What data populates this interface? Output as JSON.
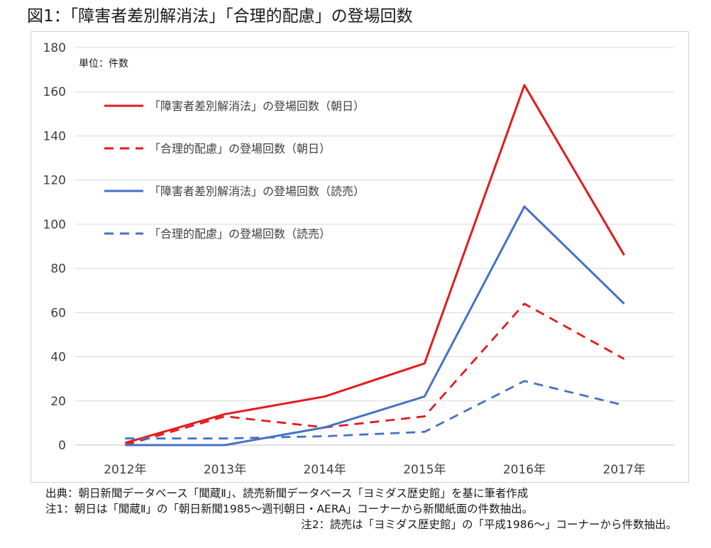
{
  "title": "図1：「障害者差別解消法」「合理的配慮」の登場回数",
  "unit_label": "単位：件数",
  "notes": [
    "出典：朝日新聞データベース「聞蔵Ⅱ」、読売新聞データベース「ヨミダス歴史館」を基に筆者作成",
    "注1：朝日は「聞蔵Ⅱ」の「朝日新聞1985～週刊朝日・AERA」コーナーから新聞紙面の件数抽出。",
    "注2：読売は「ヨミダス歴史館」の「平成1986～」コーナーから件数抽出。"
  ],
  "chart_data": {
    "type": "line",
    "title": "図1：「障害者差別解消法」「合理的配慮」の登場回数",
    "xlabel": "",
    "ylabel": "単位：件数",
    "categories": [
      "2012年",
      "2013年",
      "2014年",
      "2015年",
      "2016年",
      "2017年"
    ],
    "ylim": [
      0,
      180
    ],
    "yticks": [
      0,
      20,
      40,
      60,
      80,
      100,
      120,
      140,
      160,
      180
    ],
    "grid": true,
    "legend_position": "top-left",
    "series": [
      {
        "name": "「障害者差別解消法」の登場回数（朝日）",
        "values": [
          1,
          14,
          22,
          37,
          163,
          86
        ],
        "color": "#e31a1c",
        "dash": "solid"
      },
      {
        "name": "「合理的配慮」の登場回数（朝日）",
        "values": [
          0,
          13,
          8,
          13,
          64,
          39
        ],
        "color": "#e31a1c",
        "dash": "dashed"
      },
      {
        "name": "「障害者差別解消法」の登場回数（読売）",
        "values": [
          0,
          0,
          8,
          22,
          108,
          64
        ],
        "color": "#4472c4",
        "dash": "solid"
      },
      {
        "name": "「合理的配慮」の登場回数（読売）",
        "values": [
          3,
          3,
          4,
          6,
          29,
          18
        ],
        "color": "#4472c4",
        "dash": "dashed"
      }
    ]
  }
}
